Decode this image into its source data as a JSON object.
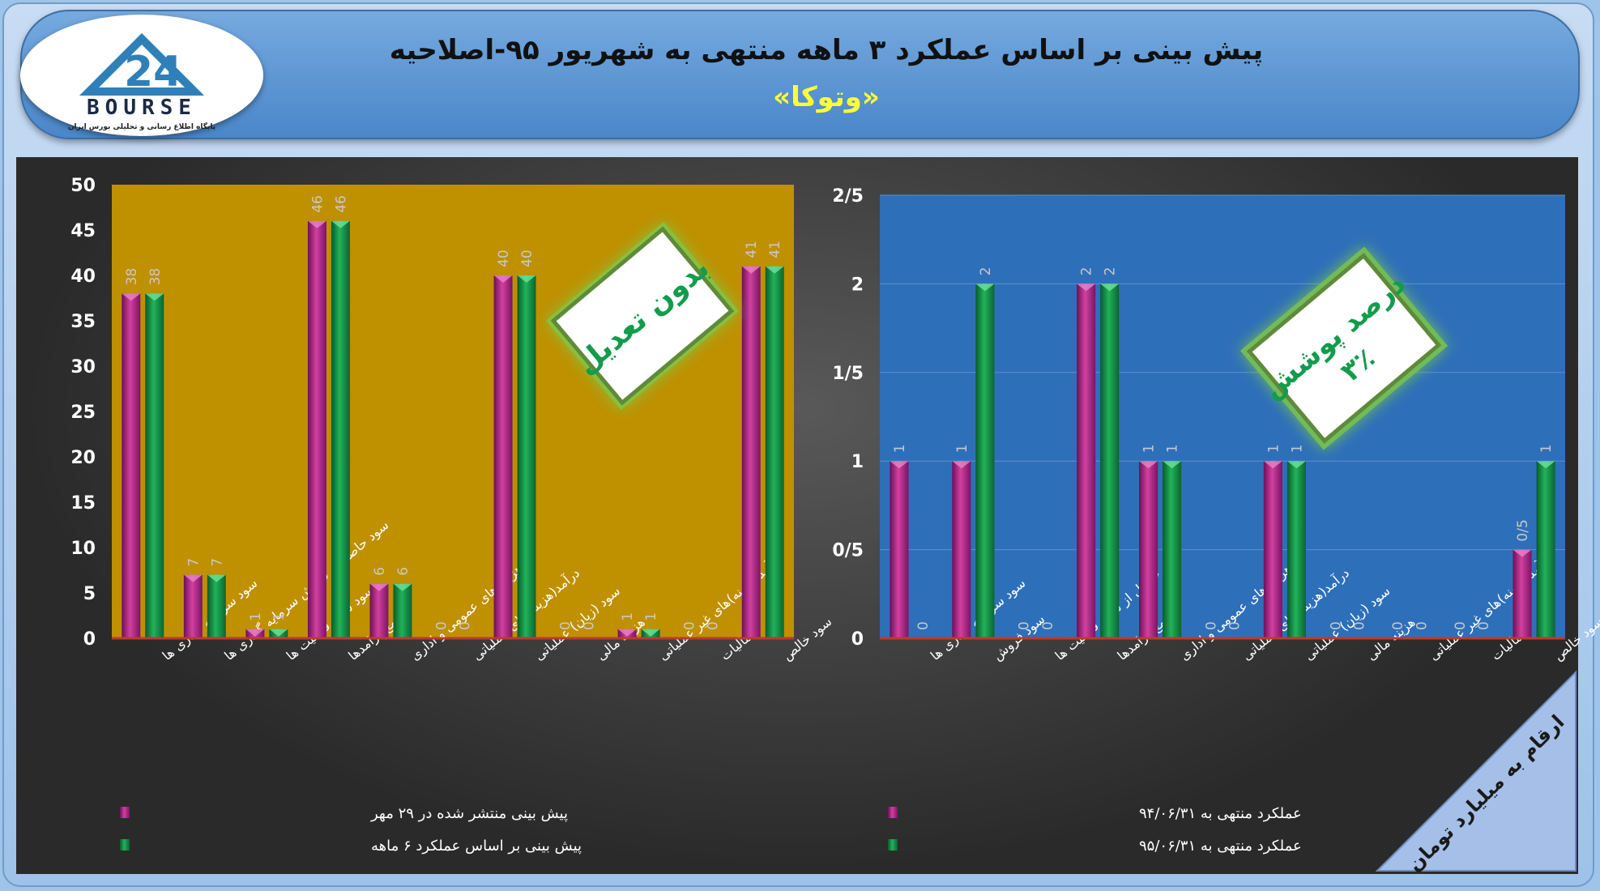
{
  "header": {
    "title": "پیش بینی بر اساس عملکرد ۳ ماهه منتهی به شهریور ۹۵-اصلاحیه",
    "company": "«وتوکا»"
  },
  "logo": {
    "digits": "24",
    "word": "BOURSE",
    "caption": "پایگاه اطلاع رسانی و تحلیلی بورس ایران"
  },
  "stamps": {
    "left": "بدون تعدیل",
    "right_line1": "درصد پوشش",
    "right_line2": "۳٪"
  },
  "unit_note": "ارقام به میلیارد تومان",
  "colors": {
    "magenta": "#c0399a",
    "green": "#1fa552",
    "left_bg": "#bf9000",
    "right_bg": "#2e6fba",
    "baseline": "#c0392b"
  },
  "chart_data": [
    {
      "type": "bar",
      "background": "#bf9000",
      "categories": [
        "سود سرمایه گذاری ها",
        "سود حاصل از فروش سرمایه گذاری ها",
        "سود سایر فعالیت ها",
        "جمع درامدها",
        "هزینه های عمومی و اداری",
        "درآمد(هزینه)های عملیاتی",
        "سود (زیان) عملیاتی",
        "هزینه مالی",
        "درآمد(هزینه)های غیر عملیاتی",
        "مالیات",
        "سود خالص"
      ],
      "series": [
        {
          "name": "پیش بینی منتشر شده در ۲۹ مهر",
          "values": [
            38,
            7,
            1,
            46,
            6,
            0,
            40,
            0,
            1,
            0,
            41
          ]
        },
        {
          "name": "پیش بینی بر اساس عملکرد ۶ ماهه",
          "values": [
            38,
            7,
            1,
            46,
            6,
            0,
            40,
            0,
            1,
            0,
            41
          ]
        }
      ],
      "data_labels": [
        [
          "38",
          "7",
          "1",
          "46",
          "6",
          "0",
          "40",
          "0",
          "1",
          "0",
          "41"
        ],
        [
          "38",
          "7",
          "1",
          "46",
          "6",
          "0",
          "40",
          "0",
          "1",
          "0",
          "41"
        ]
      ],
      "yticks": [
        "0",
        "5",
        "10",
        "15",
        "20",
        "25",
        "30",
        "35",
        "40",
        "45",
        "50"
      ],
      "ylim": [
        0,
        50
      ],
      "legend": "bottom-left"
    },
    {
      "type": "bar",
      "background": "#2e6fba",
      "categories": [
        "سود سرمایه گذاری ها",
        "سود فروش",
        "سود حاصل از سایر فعالیت ها",
        "جمع درامدها",
        "هزینه های عمومی و اداری",
        "درآمد(هزینه)های عملیاتی",
        "سود (زیان) عملیاتی",
        "هزینه مالی",
        "درآمد(هزینه)های غیر عملیاتی",
        "مالیات",
        "سود خالص"
      ],
      "series": [
        {
          "name": "عملکرد منتهی به ۹۴/۰۶/۳۱",
          "values": [
            1,
            1,
            0,
            2,
            1,
            0,
            1,
            0,
            0,
            0,
            0.5
          ]
        },
        {
          "name": "عملکرد منتهی به ۹۵/۰۶/۳۱",
          "values": [
            0,
            2,
            0,
            2,
            1,
            0,
            1,
            0,
            0,
            0,
            1
          ]
        }
      ],
      "data_labels": [
        [
          "1",
          "1",
          "0",
          "2",
          "1",
          "0",
          "1",
          "0",
          "0",
          "0",
          "0/5"
        ],
        [
          "0",
          "2",
          "0",
          "2",
          "1",
          "0",
          "1",
          "0",
          "0",
          "0",
          "1"
        ]
      ],
      "yticks": [
        "0",
        "0/5",
        "1",
        "1/5",
        "2",
        "2/5"
      ],
      "ylim": [
        0,
        2.5
      ],
      "legend": "bottom-left"
    }
  ]
}
